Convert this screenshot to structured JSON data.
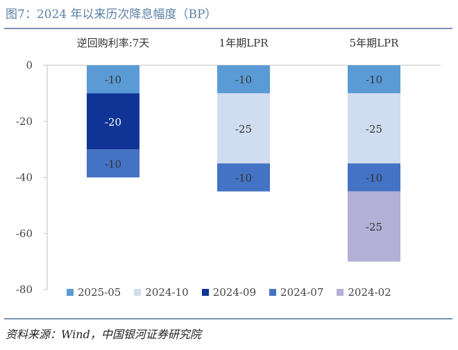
{
  "title": "图7：2024 年以来历次降息幅度（BP）",
  "source": "资料来源：Wind，中国银河证券研究院",
  "colors": {
    "2025-05": "#5b9bd5",
    "2024-10": "#d0dcef",
    "2024-09": "#0f3495",
    "2024-07": "#4472c4",
    "2024-02": "#b4afd6",
    "axis": "#bfbfbf",
    "rule": "#7a93b8",
    "title": "#5b7fa6"
  },
  "chart_data": {
    "type": "bar",
    "stacked": true,
    "categories": [
      "逆回购利率:7天",
      "1年期LPR",
      "5年期LPR"
    ],
    "category_axis_position": "top",
    "ylim": [
      -80,
      0
    ],
    "yticks": [
      "0",
      "-20",
      "-40",
      "-60",
      "-80"
    ],
    "grid": false,
    "legend_position": "bottom",
    "series": [
      {
        "name": "2025-05",
        "values": [
          -10,
          -10,
          -10
        ]
      },
      {
        "name": "2024-10",
        "values": [
          0,
          -25,
          -25
        ]
      },
      {
        "name": "2024-09",
        "values": [
          -20,
          0,
          0
        ]
      },
      {
        "name": "2024-07",
        "values": [
          -10,
          -10,
          -10
        ]
      },
      {
        "name": "2024-02",
        "values": [
          0,
          0,
          -25
        ]
      }
    ]
  }
}
